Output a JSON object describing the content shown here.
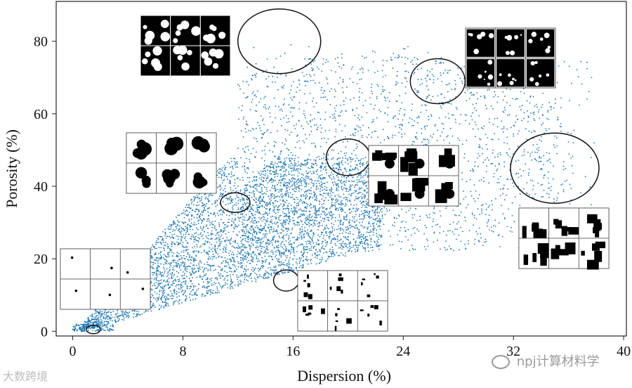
{
  "chart_data": {
    "type": "scatter",
    "xlabel": "Dispersion (%)",
    "ylabel": "Porosity (%)",
    "xlim": [
      -1.2,
      40.2
    ],
    "ylim": [
      -1.3,
      91
    ],
    "xticks": [
      "0",
      "8",
      "16",
      "24",
      "32",
      "40"
    ],
    "xtick_values": [
      0,
      8,
      16,
      24,
      32,
      40
    ],
    "yticks": [
      "0",
      "20",
      "40",
      "60",
      "80"
    ],
    "ytick_values": [
      0,
      20,
      40,
      60,
      80
    ],
    "point_color": "#1f77b4",
    "series": [
      {
        "clusters_approx": [
          {
            "x_range": [
              0,
              2
            ],
            "y_range": [
              0,
              1
            ]
          },
          {
            "x_range": [
              2,
              8
            ],
            "y_range": [
              2,
              22
            ]
          },
          {
            "x_range": [
              6,
              18
            ],
            "y_range": [
              10,
              45
            ]
          },
          {
            "x_range": [
              14,
              24
            ],
            "y_range": [
              15,
              40
            ]
          },
          {
            "x_range": [
              16,
              36
            ],
            "y_range": [
              30,
              80
            ]
          },
          {
            "x_range": [
              30,
              39
            ],
            "y_range": [
              38,
              55
            ]
          }
        ]
      }
    ],
    "highlighted_regions": [
      {
        "x": 1.5,
        "y": 0.5
      },
      {
        "x": 11.8,
        "y": 35.5
      },
      {
        "x": 15.5,
        "y": 14
      },
      {
        "x": 20,
        "y": 48
      },
      {
        "x": 15,
        "y": 80
      },
      {
        "x": 26.5,
        "y": 69
      },
      {
        "x": 35,
        "y": 45
      }
    ],
    "inset_count": 7
  },
  "watermarks": {
    "bottom_left": "大数跨境",
    "bottom_right": "npj计算材料学"
  }
}
